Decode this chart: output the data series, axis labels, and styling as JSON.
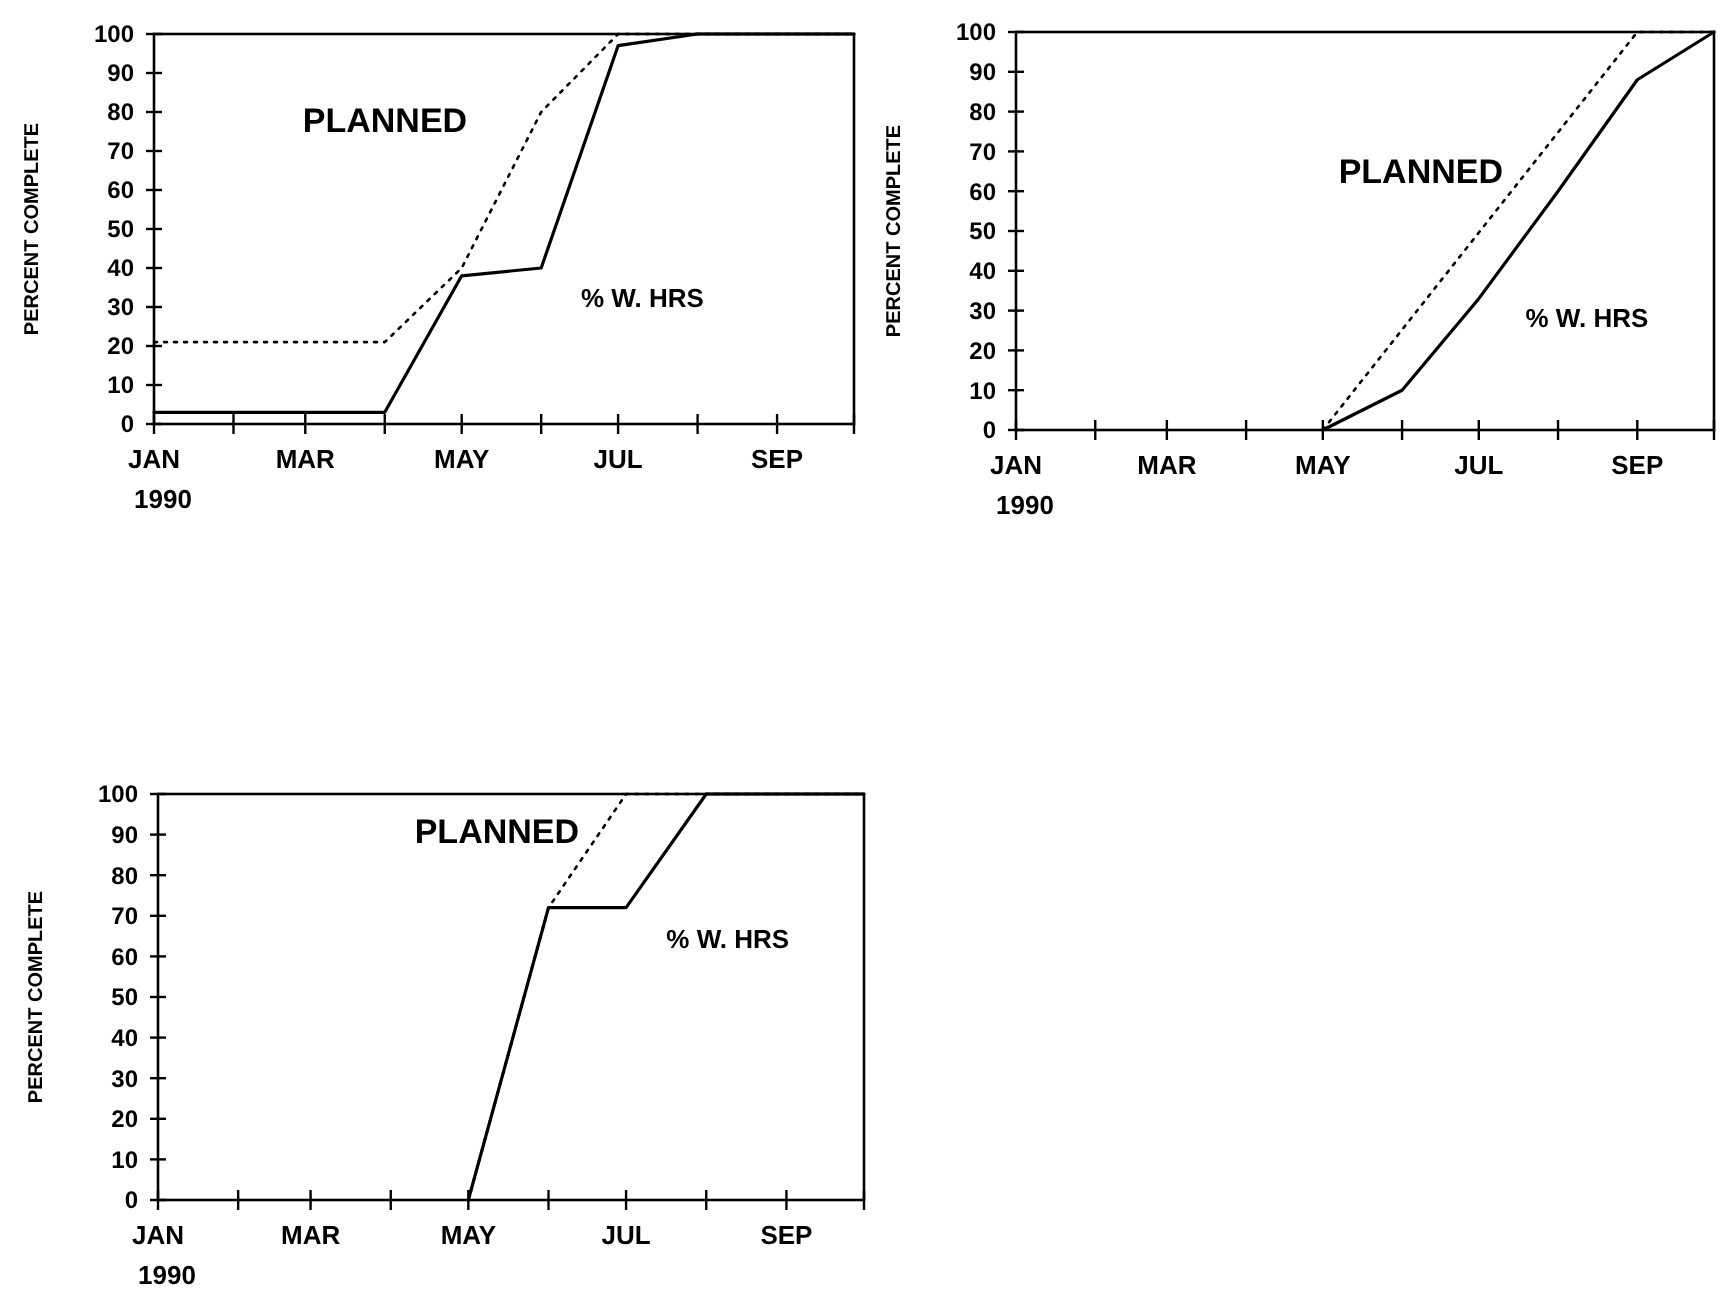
{
  "chart_data": [
    {
      "type": "line",
      "ylabel": "PERCENT COMPLETE",
      "xlim": [
        "1990-01",
        "1990-10"
      ],
      "ylim": [
        0,
        100
      ],
      "xticks": [
        {
          "value": "1990-01",
          "label": "JAN"
        },
        {
          "value": "1990-02",
          "label": null
        },
        {
          "value": "1990-03",
          "label": "MAR"
        },
        {
          "value": "1990-04",
          "label": null
        },
        {
          "value": "1990-05",
          "label": "MAY"
        },
        {
          "value": "1990-06",
          "label": null
        },
        {
          "value": "1990-07",
          "label": "JUL"
        },
        {
          "value": "1990-08",
          "label": null
        },
        {
          "value": "1990-09",
          "label": "SEP"
        },
        {
          "value": "1990-10",
          "label": null
        }
      ],
      "yticks": [
        0,
        10,
        20,
        30,
        40,
        50,
        60,
        70,
        80,
        90,
        100
      ],
      "grid": false,
      "legend": false,
      "marker": "none",
      "annotations": [
        "1990"
      ],
      "series": [
        {
          "name": "PLANNED",
          "color": "#000000",
          "line_style": "dotted",
          "x": [
            "1990-01",
            "1990-04",
            "1990-05",
            "1990-06",
            "1990-07",
            "1990-10"
          ],
          "values": [
            21,
            21,
            40,
            80,
            100,
            100
          ]
        },
        {
          "name": "% W. HRS",
          "color": "#000000",
          "line_style": "solid",
          "x": [
            "1990-01",
            "1990-04",
            "1990-05",
            "1990-06",
            "1990-07",
            "1990-08",
            "1990-10"
          ],
          "values": [
            3,
            3,
            38,
            40,
            97,
            100,
            100
          ]
        }
      ]
    },
    {
      "type": "line",
      "ylabel": "PERCENT COMPLETE",
      "xlim": [
        "1990-01",
        "1990-10"
      ],
      "ylim": [
        0,
        100
      ],
      "xticks": [
        {
          "value": "1990-01",
          "label": "JAN"
        },
        {
          "value": "1990-02",
          "label": null
        },
        {
          "value": "1990-03",
          "label": "MAR"
        },
        {
          "value": "1990-04",
          "label": null
        },
        {
          "value": "1990-05",
          "label": "MAY"
        },
        {
          "value": "1990-06",
          "label": null
        },
        {
          "value": "1990-07",
          "label": "JUL"
        },
        {
          "value": "1990-08",
          "label": null
        },
        {
          "value": "1990-09",
          "label": "SEP"
        },
        {
          "value": "1990-10",
          "label": null
        }
      ],
      "yticks": [
        0,
        10,
        20,
        30,
        40,
        50,
        60,
        70,
        80,
        90,
        100
      ],
      "grid": false,
      "legend": false,
      "marker": "none",
      "annotations": [
        "1990"
      ],
      "series": [
        {
          "name": "PLANNED",
          "color": "#000000",
          "line_style": "dotted",
          "x": [
            "1990-05",
            "1990-09",
            "1990-10"
          ],
          "values": [
            0,
            100,
            100
          ]
        },
        {
          "name": "% W. HRS",
          "color": "#000000",
          "line_style": "solid",
          "x": [
            "1990-05",
            "1990-06",
            "1990-07",
            "1990-08",
            "1990-09",
            "1990-10"
          ],
          "values": [
            0,
            10,
            33,
            60,
            88,
            100
          ]
        }
      ]
    },
    {
      "type": "line",
      "ylabel": "PERCENT COMPLETE",
      "xlim": [
        "1990-01",
        "1990-10"
      ],
      "ylim": [
        0,
        100
      ],
      "xticks": [
        {
          "value": "1990-01",
          "label": "JAN"
        },
        {
          "value": "1990-02",
          "label": null
        },
        {
          "value": "1990-03",
          "label": "MAR"
        },
        {
          "value": "1990-04",
          "label": null
        },
        {
          "value": "1990-05",
          "label": "MAY"
        },
        {
          "value": "1990-06",
          "label": null
        },
        {
          "value": "1990-07",
          "label": "JUL"
        },
        {
          "value": "1990-08",
          "label": null
        },
        {
          "value": "1990-09",
          "label": "SEP"
        },
        {
          "value": "1990-10",
          "label": null
        }
      ],
      "yticks": [
        0,
        10,
        20,
        30,
        40,
        50,
        60,
        70,
        80,
        90,
        100
      ],
      "grid": false,
      "legend": false,
      "marker": "none",
      "annotations": [
        "1990"
      ],
      "series": [
        {
          "name": "PLANNED",
          "color": "#000000",
          "line_style": "dotted",
          "x": [
            "1990-05",
            "1990-06",
            "1990-07",
            "1990-10"
          ],
          "values": [
            0,
            72,
            100,
            100
          ]
        },
        {
          "name": "% W. HRS",
          "color": "#000000",
          "line_style": "solid",
          "x": [
            "1990-05",
            "1990-06",
            "1990-07",
            "1990-08",
            "1990-10"
          ],
          "values": [
            0,
            72,
            72,
            100,
            100
          ]
        }
      ]
    }
  ]
}
